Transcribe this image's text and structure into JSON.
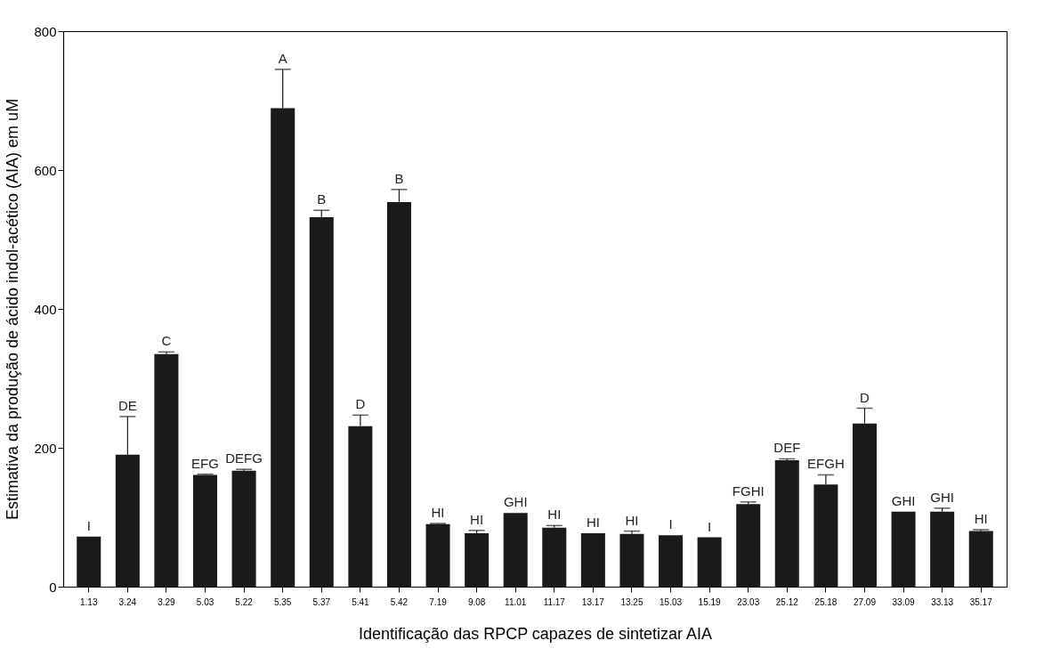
{
  "chart_data": {
    "type": "bar",
    "xlabel": "Identificação das RPCP capazes de sintetizar AIA",
    "ylabel": "Estimativa da produção de ácido indol-acético (AIA) em uM",
    "categories": [
      "1.13",
      "3.24",
      "3.29",
      "5.03",
      "5.22",
      "5.35",
      "5.37",
      "5.41",
      "5.42",
      "7.19",
      "9.08",
      "11.01",
      "11.17",
      "13.17",
      "13.25",
      "15.03",
      "15.19",
      "23.03",
      "25.12",
      "25.18",
      "27.09",
      "33.09",
      "33.13",
      "35.17"
    ],
    "values": [
      72,
      190,
      335,
      161,
      167,
      689,
      532,
      231,
      554,
      90,
      77,
      106,
      85,
      77,
      76,
      74,
      71,
      119,
      182,
      147,
      235,
      108,
      108,
      80
    ],
    "errors": [
      null,
      55,
      3,
      1,
      2,
      56,
      10,
      16,
      18,
      1,
      4,
      null,
      3,
      null,
      4,
      null,
      null,
      3,
      2,
      14,
      22,
      null,
      5,
      2
    ],
    "color": "#1a1a1a",
    "ylim": [
      0,
      800
    ],
    "yticks": [
      0,
      200,
      400,
      600,
      800
    ],
    "grid": false,
    "annotations": [
      {
        "text": "I",
        "x": "1.13",
        "y": 72
      },
      {
        "text": "DE",
        "x": "3.24",
        "y": 245
      },
      {
        "text": "C",
        "x": "3.29",
        "y": 338
      },
      {
        "text": "EFG",
        "x": "5.03",
        "y": 162
      },
      {
        "text": "DEFG",
        "x": "5.22",
        "y": 169
      },
      {
        "text": "A",
        "x": "5.35",
        "y": 745
      },
      {
        "text": "B",
        "x": "5.37",
        "y": 542
      },
      {
        "text": "D",
        "x": "5.41",
        "y": 247
      },
      {
        "text": "B",
        "x": "5.42",
        "y": 572
      },
      {
        "text": "HI",
        "x": "7.19",
        "y": 91
      },
      {
        "text": "HI",
        "x": "9.08",
        "y": 81
      },
      {
        "text": "GHI",
        "x": "11.01",
        "y": 106
      },
      {
        "text": "HI",
        "x": "11.17",
        "y": 88
      },
      {
        "text": "HI",
        "x": "13.17",
        "y": 77
      },
      {
        "text": "HI",
        "x": "13.25",
        "y": 80
      },
      {
        "text": "I",
        "x": "15.03",
        "y": 74
      },
      {
        "text": "I",
        "x": "15.19",
        "y": 71
      },
      {
        "text": "FGHI",
        "x": "23.03",
        "y": 122
      },
      {
        "text": "DEF",
        "x": "25.12",
        "y": 184
      },
      {
        "text": "EFGH",
        "x": "25.18",
        "y": 161
      },
      {
        "text": "D",
        "x": "27.09",
        "y": 257
      },
      {
        "text": "GHI",
        "x": "33.09",
        "y": 108
      },
      {
        "text": "GHI",
        "x": "33.13",
        "y": 113
      },
      {
        "text": "HI",
        "x": "35.17",
        "y": 82
      }
    ]
  }
}
